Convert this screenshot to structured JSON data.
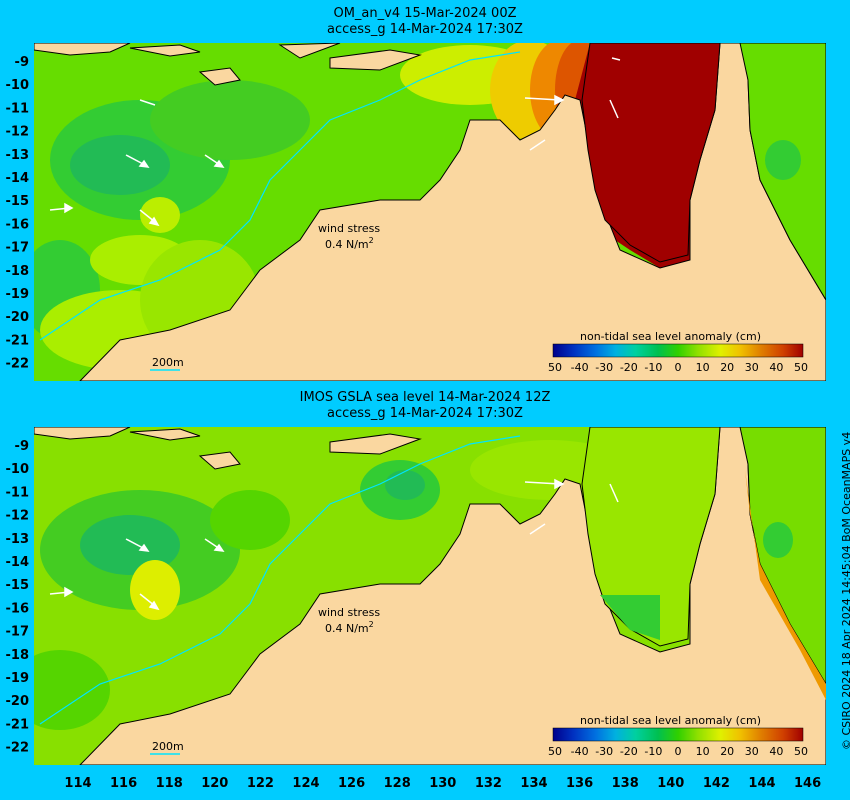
{
  "panels": [
    {
      "title_line1": "OM_an_v4  15-Mar-2024 00Z",
      "title_line2": "access_g 14-Mar-2024 17:30Z",
      "wind_label": "wind stress",
      "wind_value": "0.4 N/m",
      "wind_exp": "2",
      "isobath_label": "200m",
      "colorbar_title": "non-tidal sea level anomaly (cm)"
    },
    {
      "title_line1": "IMOS GSLA sea level  14-Mar-2024 12Z",
      "title_line2": "access_g 14-Mar-2024 17:30Z",
      "wind_label": "wind stress",
      "wind_value": "0.4 N/m",
      "wind_exp": "2",
      "isobath_label": "200m",
      "colorbar_title": "non-tidal sea level anomaly (cm)"
    }
  ],
  "lat_ticks": [
    "-9",
    "-10",
    "-11",
    "-12",
    "-13",
    "-14",
    "-15",
    "-16",
    "-17",
    "-18",
    "-19",
    "-20",
    "-21",
    "-22"
  ],
  "lon_ticks": [
    "114",
    "116",
    "118",
    "120",
    "122",
    "124",
    "126",
    "128",
    "130",
    "132",
    "134",
    "136",
    "138",
    "140",
    "142",
    "144",
    "146"
  ],
  "colorbar": {
    "ticks": [
      "50",
      "-40",
      "-30",
      "-20",
      "-10",
      "0",
      "10",
      "20",
      "30",
      "40",
      "50"
    ],
    "colors": [
      "#00008b",
      "#0030c0",
      "#0070e0",
      "#00b0e0",
      "#00d0a0",
      "#00c050",
      "#30d000",
      "#90e000",
      "#e0f000",
      "#f0c000",
      "#e08000",
      "#d04000",
      "#a00000"
    ]
  },
  "colors": {
    "ocean_bg": "#00ccff",
    "land": "#fad7a0",
    "shelf_green": "#00c830",
    "anomaly_red": "#a00000"
  },
  "side_credit": "© CSIRO 2024   18 Apr 2024 14:45:04 BoM OceanMAPS v4"
}
